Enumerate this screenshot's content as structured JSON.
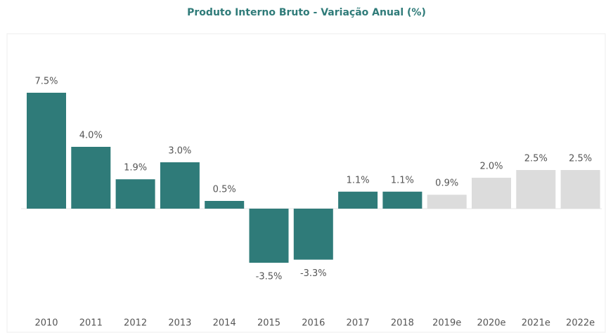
{
  "chart_data": {
    "type": "bar",
    "title": "Produto Interno Bruto - Variação Anual (%)",
    "categories": [
      "2010",
      "2011",
      "2012",
      "2013",
      "2014",
      "2015",
      "2016",
      "2017",
      "2018",
      "2019e",
      "2020e",
      "2021e",
      "2022e"
    ],
    "values": [
      7.5,
      4.0,
      1.9,
      3.0,
      0.5,
      -3.5,
      -3.3,
      1.1,
      1.1,
      0.9,
      2.0,
      2.5,
      2.5
    ],
    "value_labels": [
      "7.5%",
      "4.0%",
      "1.9%",
      "3.0%",
      "0.5%",
      "-3.5%",
      "-3.3%",
      "1.1%",
      "1.1%",
      "0.9%",
      "2.0%",
      "2.5%",
      "2.5%"
    ],
    "colors": [
      "#2f7b79",
      "#2f7b79",
      "#2f7b79",
      "#2f7b79",
      "#2f7b79",
      "#2f7b79",
      "#2f7b79",
      "#2f7b79",
      "#2f7b79",
      "#dcdcdc",
      "#dcdcdc",
      "#dcdcdc",
      "#dcdcdc"
    ]
  }
}
